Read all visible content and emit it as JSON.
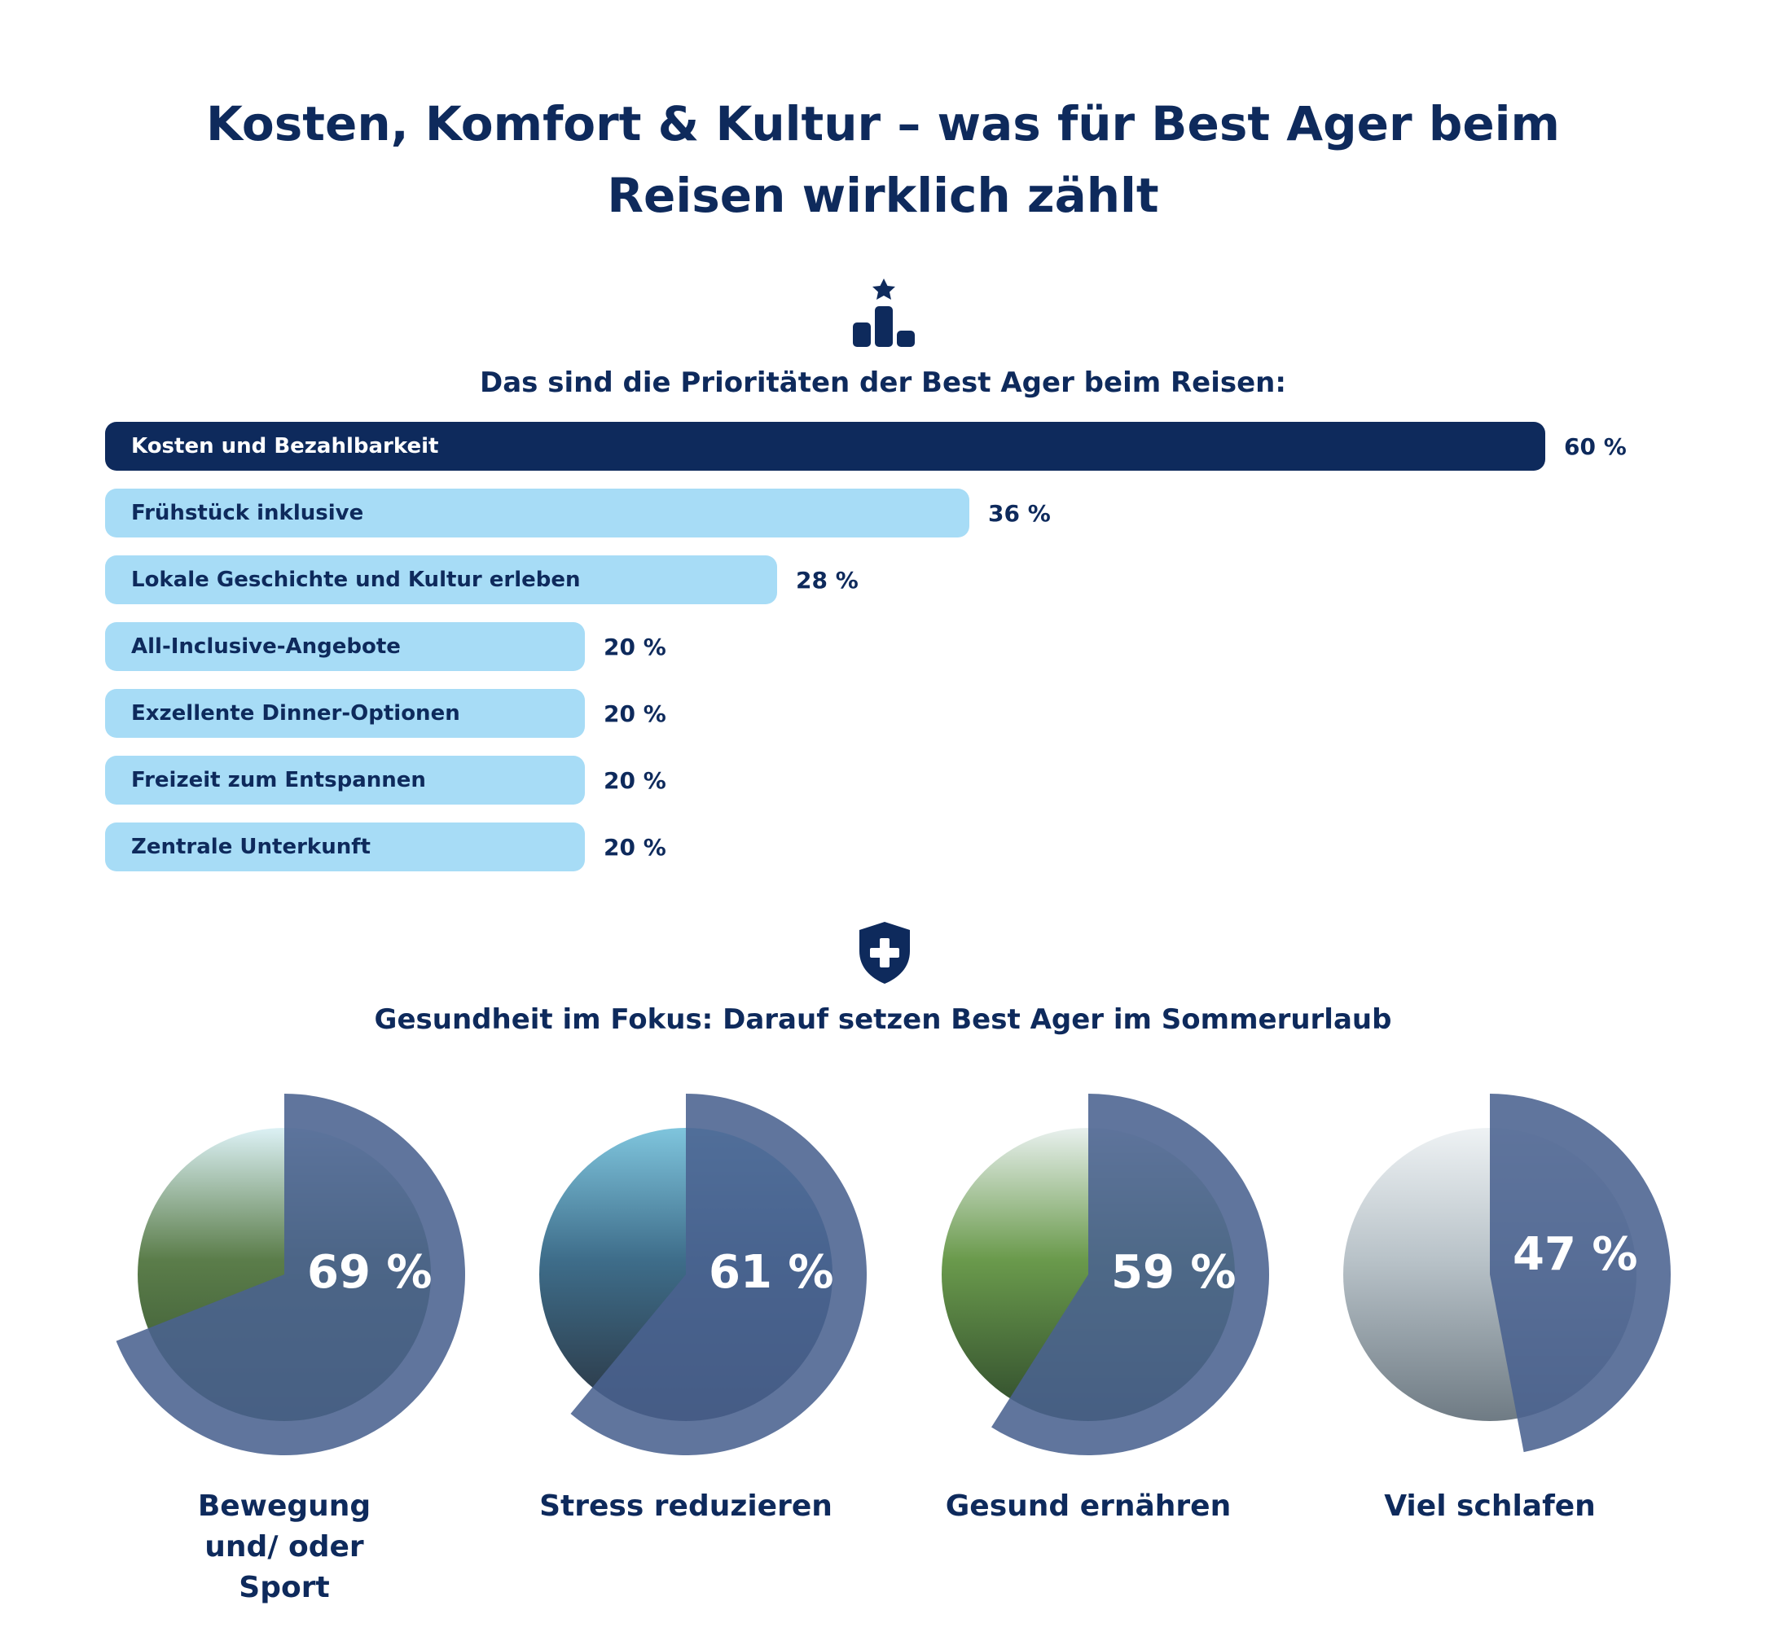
{
  "title_line1": "Kosten, Komfort & Kultur – was für Best Ager beim",
  "title_line2": "Reisen wirklich zählt",
  "section1": {
    "icon": "podium-star-icon",
    "heading": "Das sind die Prioritäten der Best Ager beim Reisen:"
  },
  "section2": {
    "icon": "shield-plus-icon",
    "heading": "Gesundheit im Fokus: Darauf setzen Best Ager im Sommerurlaub"
  },
  "colors": {
    "navy": "#0e2a5c",
    "light_blue": "#a7dcf6",
    "donut_overlay": "#4a6290"
  },
  "chart_data": [
    {
      "type": "bar",
      "orientation": "horizontal",
      "title": "Das sind die Prioritäten der Best Ager beim Reisen:",
      "categories": [
        "Kosten und Bezahlbarkeit",
        "Frühstück inklusive",
        "Lokale Geschichte und Kultur erleben",
        "All-Inclusive-Angebote",
        "Exzellente Dinner-Optionen",
        "Freizeit zum Entspannen",
        "Zentrale Unterkunft"
      ],
      "values": [
        60,
        36,
        28,
        20,
        20,
        20,
        20
      ],
      "value_labels": [
        "60 %",
        "36 %",
        "28 %",
        "20 %",
        "20 %",
        "20 %",
        "20 %"
      ],
      "unit": "%",
      "xlim": [
        0,
        60
      ],
      "grid": false
    },
    {
      "type": "pie",
      "title": "Gesundheit im Fokus: Darauf setzen Best Ager im Sommerurlaub",
      "categories": [
        "Bewegung und/ oder Sport",
        "Stress reduzieren",
        "Gesund ernähren",
        "Viel schlafen"
      ],
      "values": [
        69,
        61,
        59,
        47
      ],
      "value_labels": [
        "69 %",
        "61 %",
        "59 %",
        "47 %"
      ],
      "photo_icons": [
        "hiker-photo",
        "stacked-stones-photo",
        "salad-photo",
        "sleeping-man-photo"
      ],
      "unit": "%"
    }
  ]
}
